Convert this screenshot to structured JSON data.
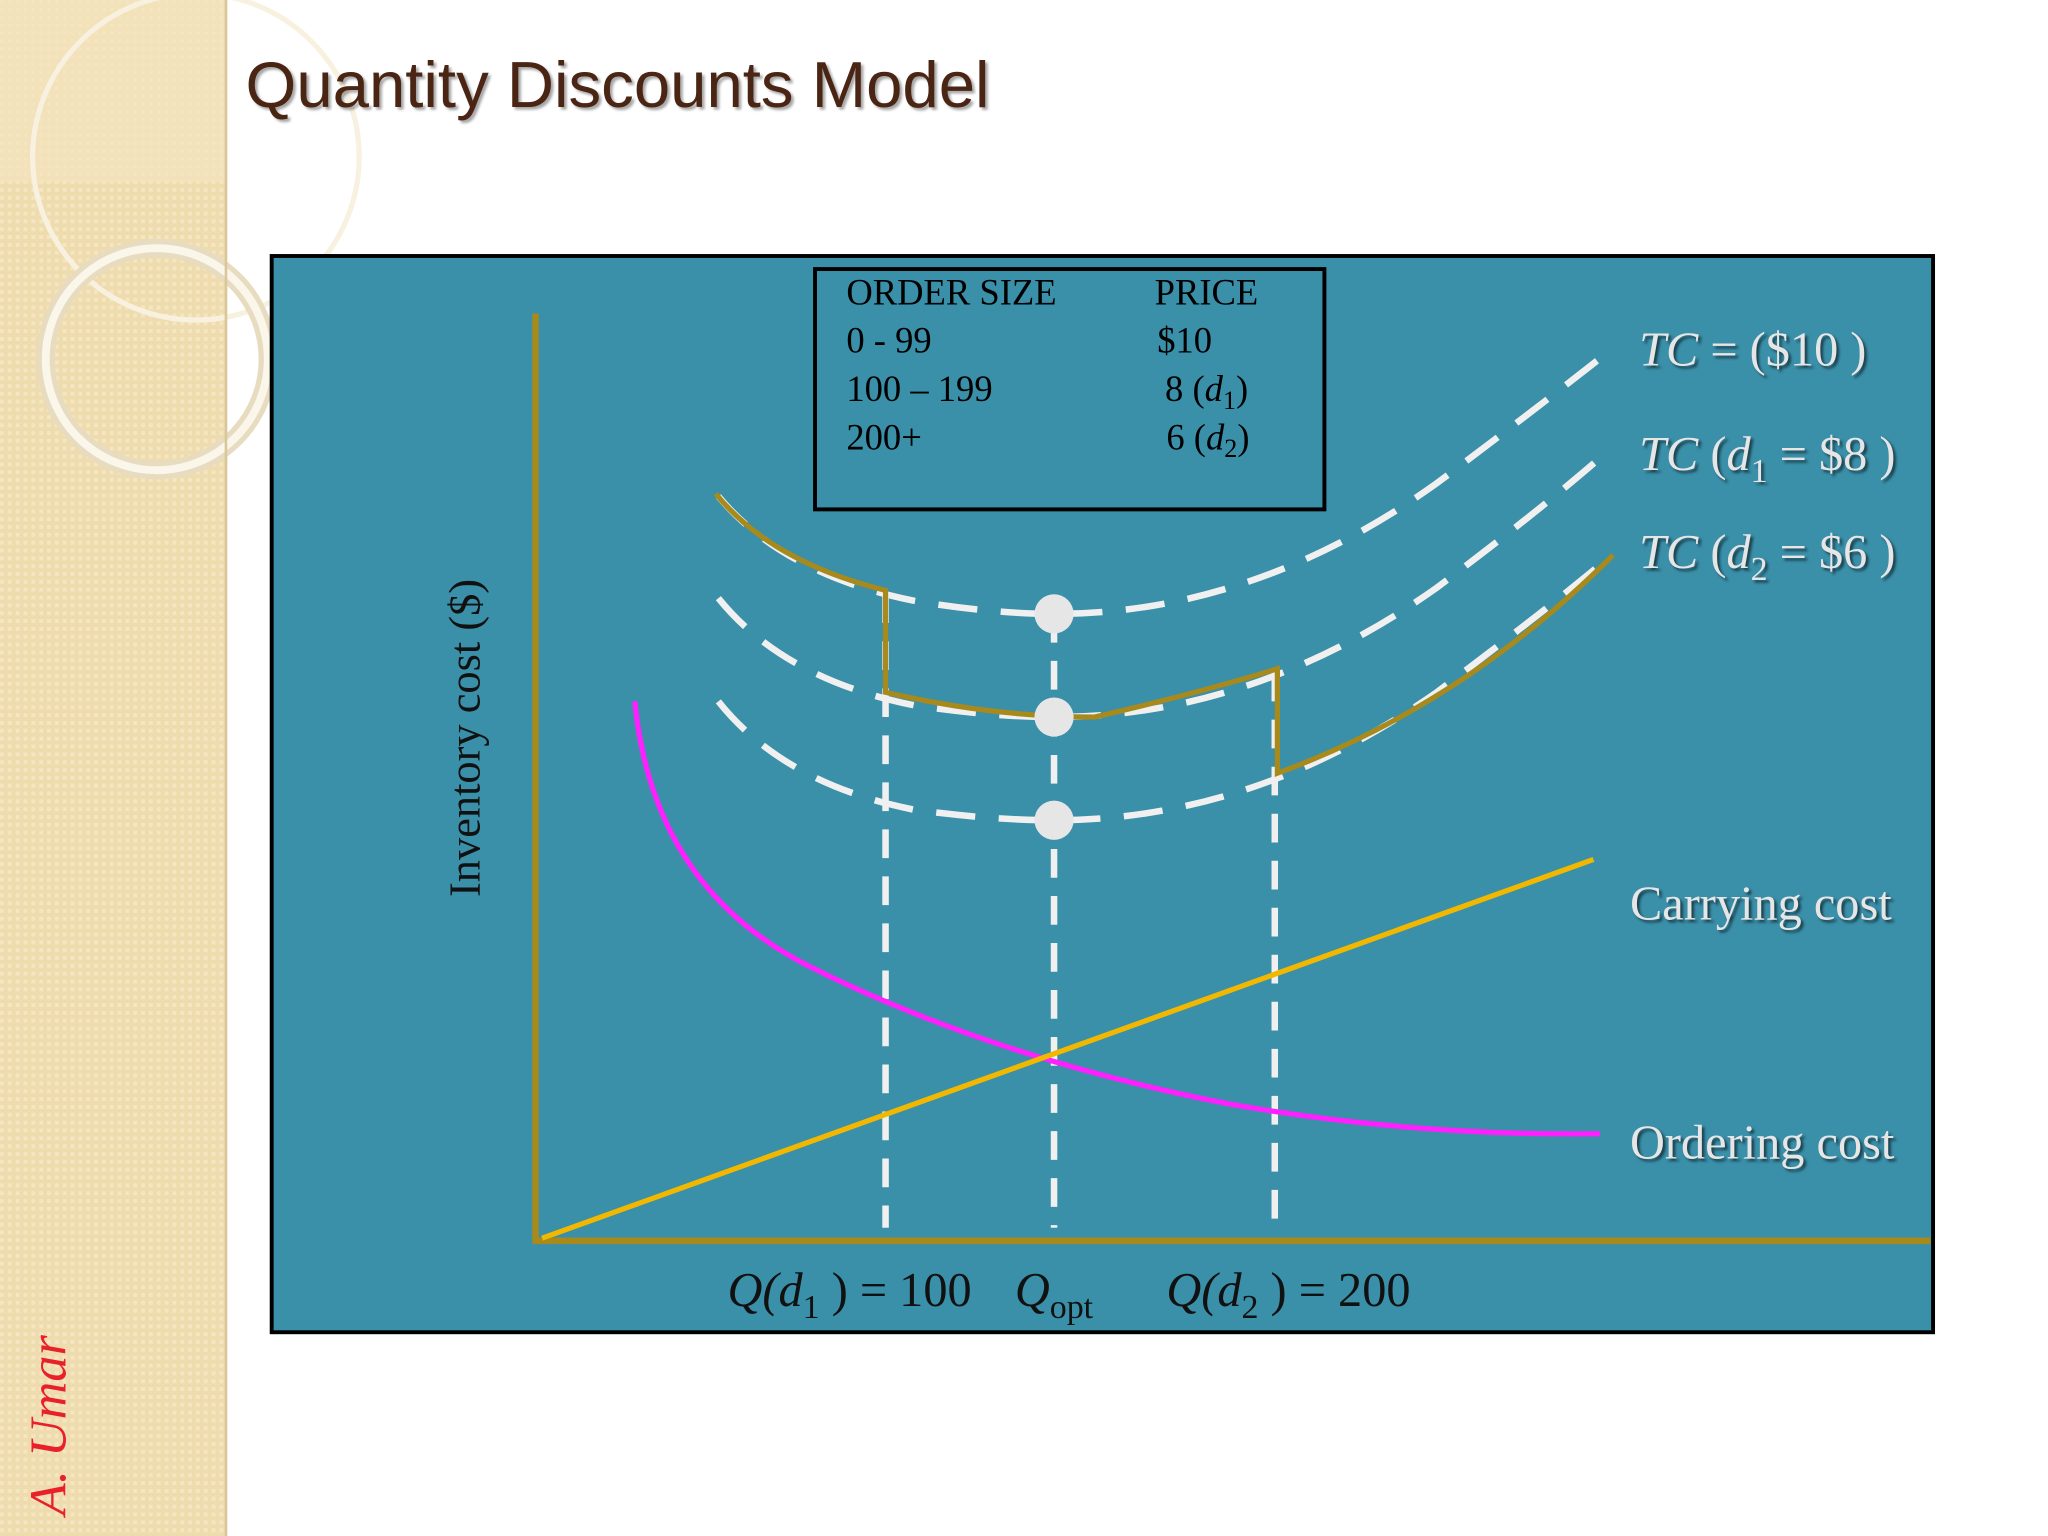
{
  "title": "Quantity Discounts Model",
  "author": "A. Umar",
  "table": {
    "headers": [
      "ORDER SIZE",
      "PRICE"
    ],
    "rows": [
      {
        "order_size": "0 - 99",
        "price": [
          "$10"
        ]
      },
      {
        "order_size": "100 – 199",
        "price": [
          "8 (",
          "d",
          "1",
          ")"
        ]
      },
      {
        "order_size": "200+",
        "price": [
          "6 (",
          "d",
          "2",
          ")"
        ]
      }
    ]
  },
  "curve_labels": [
    [
      "TC",
      " = ($10 )"
    ],
    [
      "TC",
      " (",
      "d",
      "1",
      " = $8 )"
    ],
    [
      "TC",
      " (",
      "d",
      "2",
      " = $6 )"
    ]
  ],
  "carrying_cost_label": "Carrying cost",
  "ordering_cost_label": "Ordering cost",
  "y_axis_label": "Inventory cost ($)",
  "x_labels": [
    [
      "Q(",
      "d",
      "1",
      " ) = 100"
    ],
    [
      "Q",
      "opt"
    ],
    [
      "Q(",
      "d",
      "2",
      " ) = 200"
    ]
  ]
}
